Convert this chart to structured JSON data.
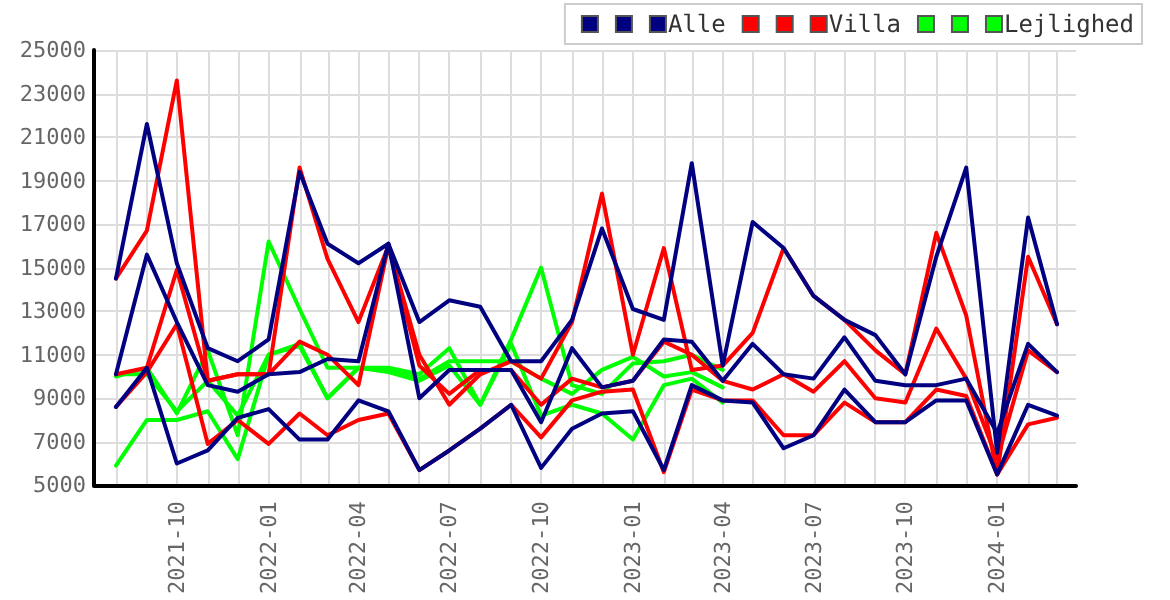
{
  "chart_data": {
    "type": "line",
    "legend": "top right",
    "grid": true,
    "marker": "none",
    "line_style": "solid",
    "x": [
      "2021-08",
      "2021-09",
      "2021-10",
      "2021-11",
      "2021-12",
      "2022-01",
      "2022-02",
      "2022-03",
      "2022-04",
      "2022-05",
      "2022-06",
      "2022-07",
      "2022-08",
      "2022-09",
      "2022-10",
      "2022-11",
      "2022-12",
      "2023-01",
      "2023-02",
      "2023-03",
      "2023-04",
      "2023-05",
      "2023-06",
      "2023-07",
      "2023-08",
      "2023-09",
      "2023-10",
      "2023-11",
      "2023-12",
      "2024-01",
      "2024-02",
      "2024-03"
    ],
    "xlim": [
      "2021-07-10",
      "2024-03-20"
    ],
    "xticks": [
      {
        "value": "2021-08",
        "label": null
      },
      {
        "value": "2021-09",
        "label": null
      },
      {
        "value": "2021-10",
        "label": "2021-10"
      },
      {
        "value": "2021-11",
        "label": null
      },
      {
        "value": "2021-12",
        "label": null
      },
      {
        "value": "2022-01",
        "label": "2022-01"
      },
      {
        "value": "2022-02",
        "label": null
      },
      {
        "value": "2022-03",
        "label": null
      },
      {
        "value": "2022-04",
        "label": "2022-04"
      },
      {
        "value": "2022-05",
        "label": null
      },
      {
        "value": "2022-06",
        "label": null
      },
      {
        "value": "2022-07",
        "label": "2022-07"
      },
      {
        "value": "2022-08",
        "label": null
      },
      {
        "value": "2022-09",
        "label": null
      },
      {
        "value": "2022-10",
        "label": "2022-10"
      },
      {
        "value": "2022-11",
        "label": null
      },
      {
        "value": "2022-12",
        "label": null
      },
      {
        "value": "2023-01",
        "label": "2023-01"
      },
      {
        "value": "2023-02",
        "label": null
      },
      {
        "value": "2023-03",
        "label": null
      },
      {
        "value": "2023-04",
        "label": "2023-04"
      },
      {
        "value": "2023-05",
        "label": null
      },
      {
        "value": "2023-06",
        "label": null
      },
      {
        "value": "2023-07",
        "label": "2023-07"
      },
      {
        "value": "2023-08",
        "label": null
      },
      {
        "value": "2023-09",
        "label": null
      },
      {
        "value": "2023-10",
        "label": "2023-10"
      },
      {
        "value": "2023-11",
        "label": null
      },
      {
        "value": "2023-12",
        "label": null
      },
      {
        "value": "2024-01",
        "label": "2024-01"
      },
      {
        "value": "2024-02",
        "label": null
      },
      {
        "value": "2024-03",
        "label": null
      }
    ],
    "ylim": [
      5000,
      25000
    ],
    "yticks": [
      5000,
      7000,
      9000,
      11000,
      13000,
      15000,
      17000,
      19000,
      21000,
      23000,
      25000
    ],
    "series": [
      {
        "color": "#000080",
        "values": [
          14500,
          21600,
          15200,
          11300,
          10700,
          11700,
          19400,
          16100,
          15200,
          16100,
          12500,
          13500,
          13200,
          10700,
          10700,
          12600,
          16800,
          13100,
          12600,
          19800,
          10500,
          17100,
          15900,
          13700,
          12600,
          11900,
          10100,
          15500,
          19600,
          6500,
          17300,
          12400
        ]
      },
      {
        "color": "#000080",
        "values": [
          10100,
          15600,
          12500,
          9600,
          9300,
          10100,
          10200,
          10800,
          10700,
          16100,
          9000,
          10300,
          10300,
          10300,
          7900,
          11300,
          9500,
          9800,
          11700,
          11600,
          9800,
          11500,
          10100,
          9900,
          11800,
          9800,
          9600,
          9600,
          9900,
          7400,
          11500,
          10200
        ]
      },
      {
        "name": "Alle",
        "color": "#000080",
        "values": [
          8600,
          10400,
          6000,
          6600,
          8100,
          8500,
          7100,
          7100,
          8900,
          8400,
          5700,
          6600,
          7600,
          8700,
          5800,
          7600,
          8300,
          8400,
          5700,
          9600,
          8900,
          8800,
          6700,
          7300,
          9400,
          7900,
          7900,
          8900,
          8900,
          5500,
          8700,
          8200
        ]
      },
      {
        "color": "#ff0000",
        "values": [
          14500,
          16700,
          23600,
          9800,
          10100,
          10100,
          19600,
          15400,
          12500,
          16000,
          11000,
          8700,
          10100,
          10700,
          9900,
          12500,
          18400,
          11000,
          15900,
          10300,
          10500,
          12000,
          15900,
          13700,
          12600,
          11200,
          10100,
          16600,
          12800,
          5500,
          15500,
          12400
        ]
      },
      {
        "color": "#ff0000",
        "values": [
          10100,
          10400,
          14900,
          9800,
          10100,
          10100,
          11600,
          11000,
          9600,
          16000,
          10500,
          9200,
          10300,
          10300,
          8700,
          9900,
          9500,
          9800,
          11600,
          11000,
          9800,
          9400,
          10100,
          9300,
          10700,
          9000,
          8800,
          12200,
          9900,
          6200,
          11200,
          10200
        ]
      },
      {
        "name": "Villa",
        "color": "#ff0000",
        "values": [
          8600,
          10200,
          12400,
          6900,
          8000,
          6900,
          8300,
          7300,
          8000,
          8300,
          5700,
          6600,
          7600,
          8700,
          7200,
          8900,
          9300,
          9400,
          5600,
          9400,
          8900,
          8900,
          7300,
          7300,
          8800,
          7900,
          7900,
          9400,
          9100,
          5500,
          7800,
          8100
        ]
      },
      {
        "color": "#00ff00",
        "values": [
          10000,
          10400,
          8300,
          11200,
          7300,
          16200,
          13100,
          10400,
          10400,
          10400,
          10100,
          11300,
          8700,
          11700,
          15000,
          9600,
          9200,
          10600,
          10700,
          11000,
          10300,
          null,
          null,
          null,
          null,
          null,
          null,
          null,
          null,
          null,
          null,
          null
        ]
      },
      {
        "color": "#00ff00",
        "values": [
          10100,
          10100,
          8400,
          9800,
          8200,
          11000,
          11500,
          9000,
          10400,
          10300,
          9900,
          10700,
          10700,
          10700,
          9900,
          9200,
          10300,
          10900,
          10000,
          10200,
          9500,
          null,
          null,
          null,
          null,
          null,
          null,
          null,
          null,
          null,
          null,
          null
        ]
      },
      {
        "name": "Lejlighed",
        "color": "#00ff00",
        "values": [
          5900,
          8000,
          8000,
          8400,
          6200,
          11000,
          11400,
          9000,
          10400,
          10200,
          9800,
          10500,
          8700,
          11500,
          8200,
          8700,
          8300,
          7100,
          9600,
          9900,
          8800,
          null,
          null,
          null,
          null,
          null,
          null,
          null,
          null,
          null,
          null,
          null
        ]
      }
    ]
  }
}
